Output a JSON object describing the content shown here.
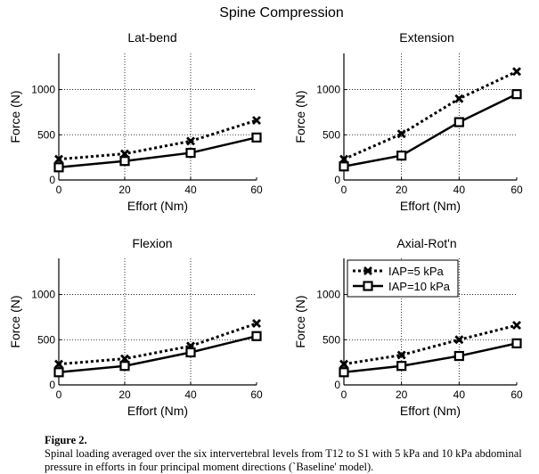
{
  "suptitle": "Spine Compression",
  "chart_data": [
    {
      "type": "line",
      "title": "Lat-bend",
      "xlabel": "Effort (Nm)",
      "ylabel": "Force (N)",
      "x": [
        0,
        20,
        40,
        60
      ],
      "xticks": [
        "0",
        "20",
        "40",
        "60"
      ],
      "yticks": [
        "0",
        "500",
        "1000"
      ],
      "xlim": [
        0,
        60
      ],
      "ylim": [
        0,
        1400
      ],
      "grid": true,
      "series": [
        {
          "name": "IAP=5 kPa",
          "values": [
            230,
            290,
            430,
            660
          ]
        },
        {
          "name": "IAP=10 kPa",
          "values": [
            140,
            210,
            300,
            470
          ]
        }
      ]
    },
    {
      "type": "line",
      "title": "Extension",
      "xlabel": "Effort (Nm)",
      "ylabel": "Force (N)",
      "x": [
        0,
        20,
        40,
        60
      ],
      "xticks": [
        "0",
        "20",
        "40",
        "60"
      ],
      "yticks": [
        "0",
        "500",
        "1000"
      ],
      "xlim": [
        0,
        60
      ],
      "ylim": [
        0,
        1400
      ],
      "grid": true,
      "series": [
        {
          "name": "IAP=5 kPa",
          "values": [
            230,
            510,
            900,
            1200
          ]
        },
        {
          "name": "IAP=10 kPa",
          "values": [
            150,
            270,
            640,
            950
          ]
        }
      ]
    },
    {
      "type": "line",
      "title": "Flexion",
      "xlabel": "Effort (Nm)",
      "ylabel": "Force (N)",
      "x": [
        0,
        20,
        40,
        60
      ],
      "xticks": [
        "0",
        "20",
        "40",
        "60"
      ],
      "yticks": [
        "0",
        "500",
        "1000"
      ],
      "xlim": [
        0,
        60
      ],
      "ylim": [
        0,
        1400
      ],
      "grid": true,
      "series": [
        {
          "name": "IAP=5 kPa",
          "values": [
            230,
            290,
            430,
            680
          ]
        },
        {
          "name": "IAP=10 kPa",
          "values": [
            140,
            210,
            360,
            540
          ]
        }
      ]
    },
    {
      "type": "line",
      "title": "Axial-Rot'n",
      "xlabel": "Effort (Nm)",
      "ylabel": "Force (N)",
      "x": [
        0,
        20,
        40,
        60
      ],
      "xticks": [
        "0",
        "20",
        "40",
        "60"
      ],
      "yticks": [
        "0",
        "500",
        "1000"
      ],
      "xlim": [
        0,
        60
      ],
      "ylim": [
        0,
        1400
      ],
      "grid": true,
      "legend": "top-left",
      "series": [
        {
          "name": "IAP=5 kPa",
          "values": [
            230,
            330,
            500,
            660
          ]
        },
        {
          "name": "IAP=10 kPa",
          "values": [
            140,
            210,
            320,
            460
          ]
        }
      ]
    }
  ],
  "caption": {
    "label": "Figure 2.",
    "text": "Spinal loading averaged over the six intervertebral levels from T12 to S1 with 5 kPa and 10 kPa abdominal pressure in efforts in four principal moment directions (`Baseline' model)."
  }
}
